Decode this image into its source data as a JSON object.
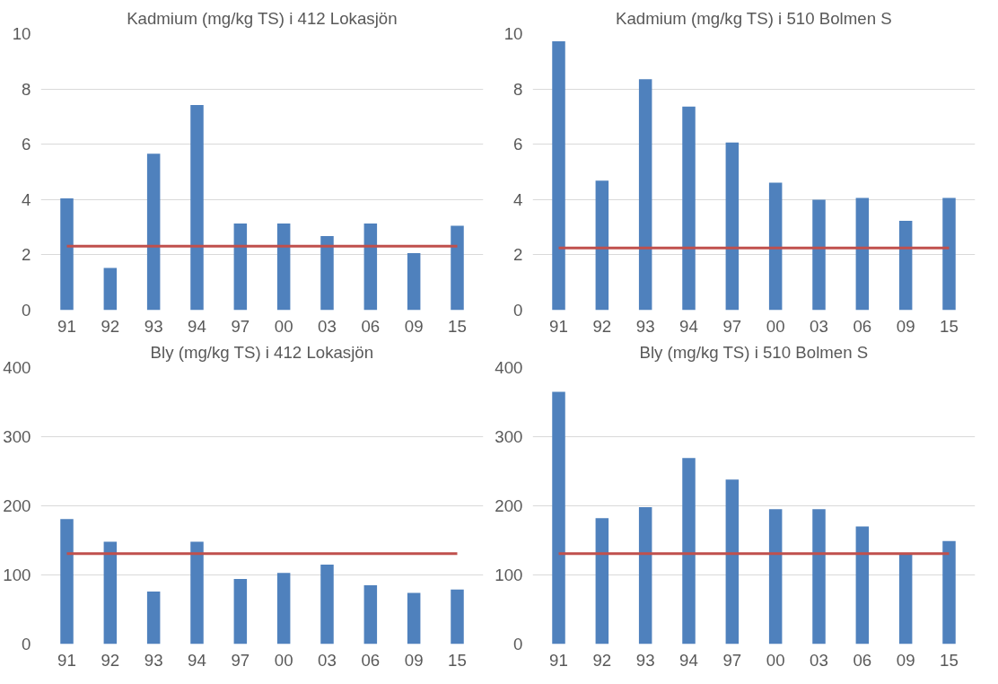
{
  "chart_data": [
    {
      "type": "bar",
      "title": "Kadmium (mg/kg TS) i 412 Lokasjön",
      "categories": [
        "91",
        "92",
        "93",
        "94",
        "97",
        "00",
        "03",
        "06",
        "09",
        "15"
      ],
      "series": [
        {
          "color": "#4f81bd",
          "values": [
            4.04,
            1.53,
            5.66,
            7.42,
            3.13,
            3.13,
            2.68,
            3.13,
            2.06,
            3.05
          ]
        }
      ],
      "ylim": [
        0,
        10
      ],
      "yticks": [
        0,
        2,
        4,
        6,
        8,
        10
      ],
      "grid": "y",
      "ref_lines": [
        {
          "axis": "y",
          "value": 2.31,
          "color": "#c0504d"
        }
      ]
    },
    {
      "type": "bar",
      "title": "Kadmium (mg/kg TS) i 510 Bolmen S",
      "categories": [
        "91",
        "92",
        "93",
        "94",
        "97",
        "00",
        "03",
        "06",
        "09",
        "15"
      ],
      "series": [
        {
          "color": "#4f81bd",
          "values": [
            9.72,
            4.68,
            8.35,
            7.36,
            6.06,
            4.61,
            3.99,
            4.06,
            3.23,
            4.06
          ]
        }
      ],
      "ylim": [
        0,
        10
      ],
      "yticks": [
        0,
        2,
        4,
        6,
        8,
        10
      ],
      "grid": "y",
      "ref_lines": [
        {
          "axis": "y",
          "value": 2.25,
          "color": "#c0504d"
        }
      ]
    },
    {
      "type": "bar",
      "title": "Bly (mg/kg TS) i 412 Lokasjön",
      "categories": [
        "91",
        "92",
        "93",
        "94",
        "97",
        "00",
        "03",
        "06",
        "09",
        "15"
      ],
      "series": [
        {
          "color": "#4f81bd",
          "values": [
            181,
            148,
            76,
            148,
            94,
            103,
            115,
            85,
            74,
            79
          ]
        }
      ],
      "ylim": [
        0,
        400
      ],
      "yticks": [
        0,
        100,
        200,
        300,
        400
      ],
      "grid": "y",
      "ref_lines": [
        {
          "axis": "y",
          "value": 131,
          "color": "#c0504d"
        }
      ]
    },
    {
      "type": "bar",
      "title": "Bly (mg/kg TS) i 510 Bolmen S",
      "categories": [
        "91",
        "92",
        "93",
        "94",
        "97",
        "00",
        "03",
        "06",
        "09",
        "15"
      ],
      "series": [
        {
          "color": "#4f81bd",
          "values": [
            365,
            182,
            198,
            269,
            238,
            195,
            195,
            170,
            131,
            149
          ]
        }
      ],
      "ylim": [
        0,
        400
      ],
      "yticks": [
        0,
        100,
        200,
        300,
        400
      ],
      "grid": "y",
      "ref_lines": [
        {
          "axis": "y",
          "value": 131,
          "color": "#c0504d"
        }
      ]
    }
  ]
}
